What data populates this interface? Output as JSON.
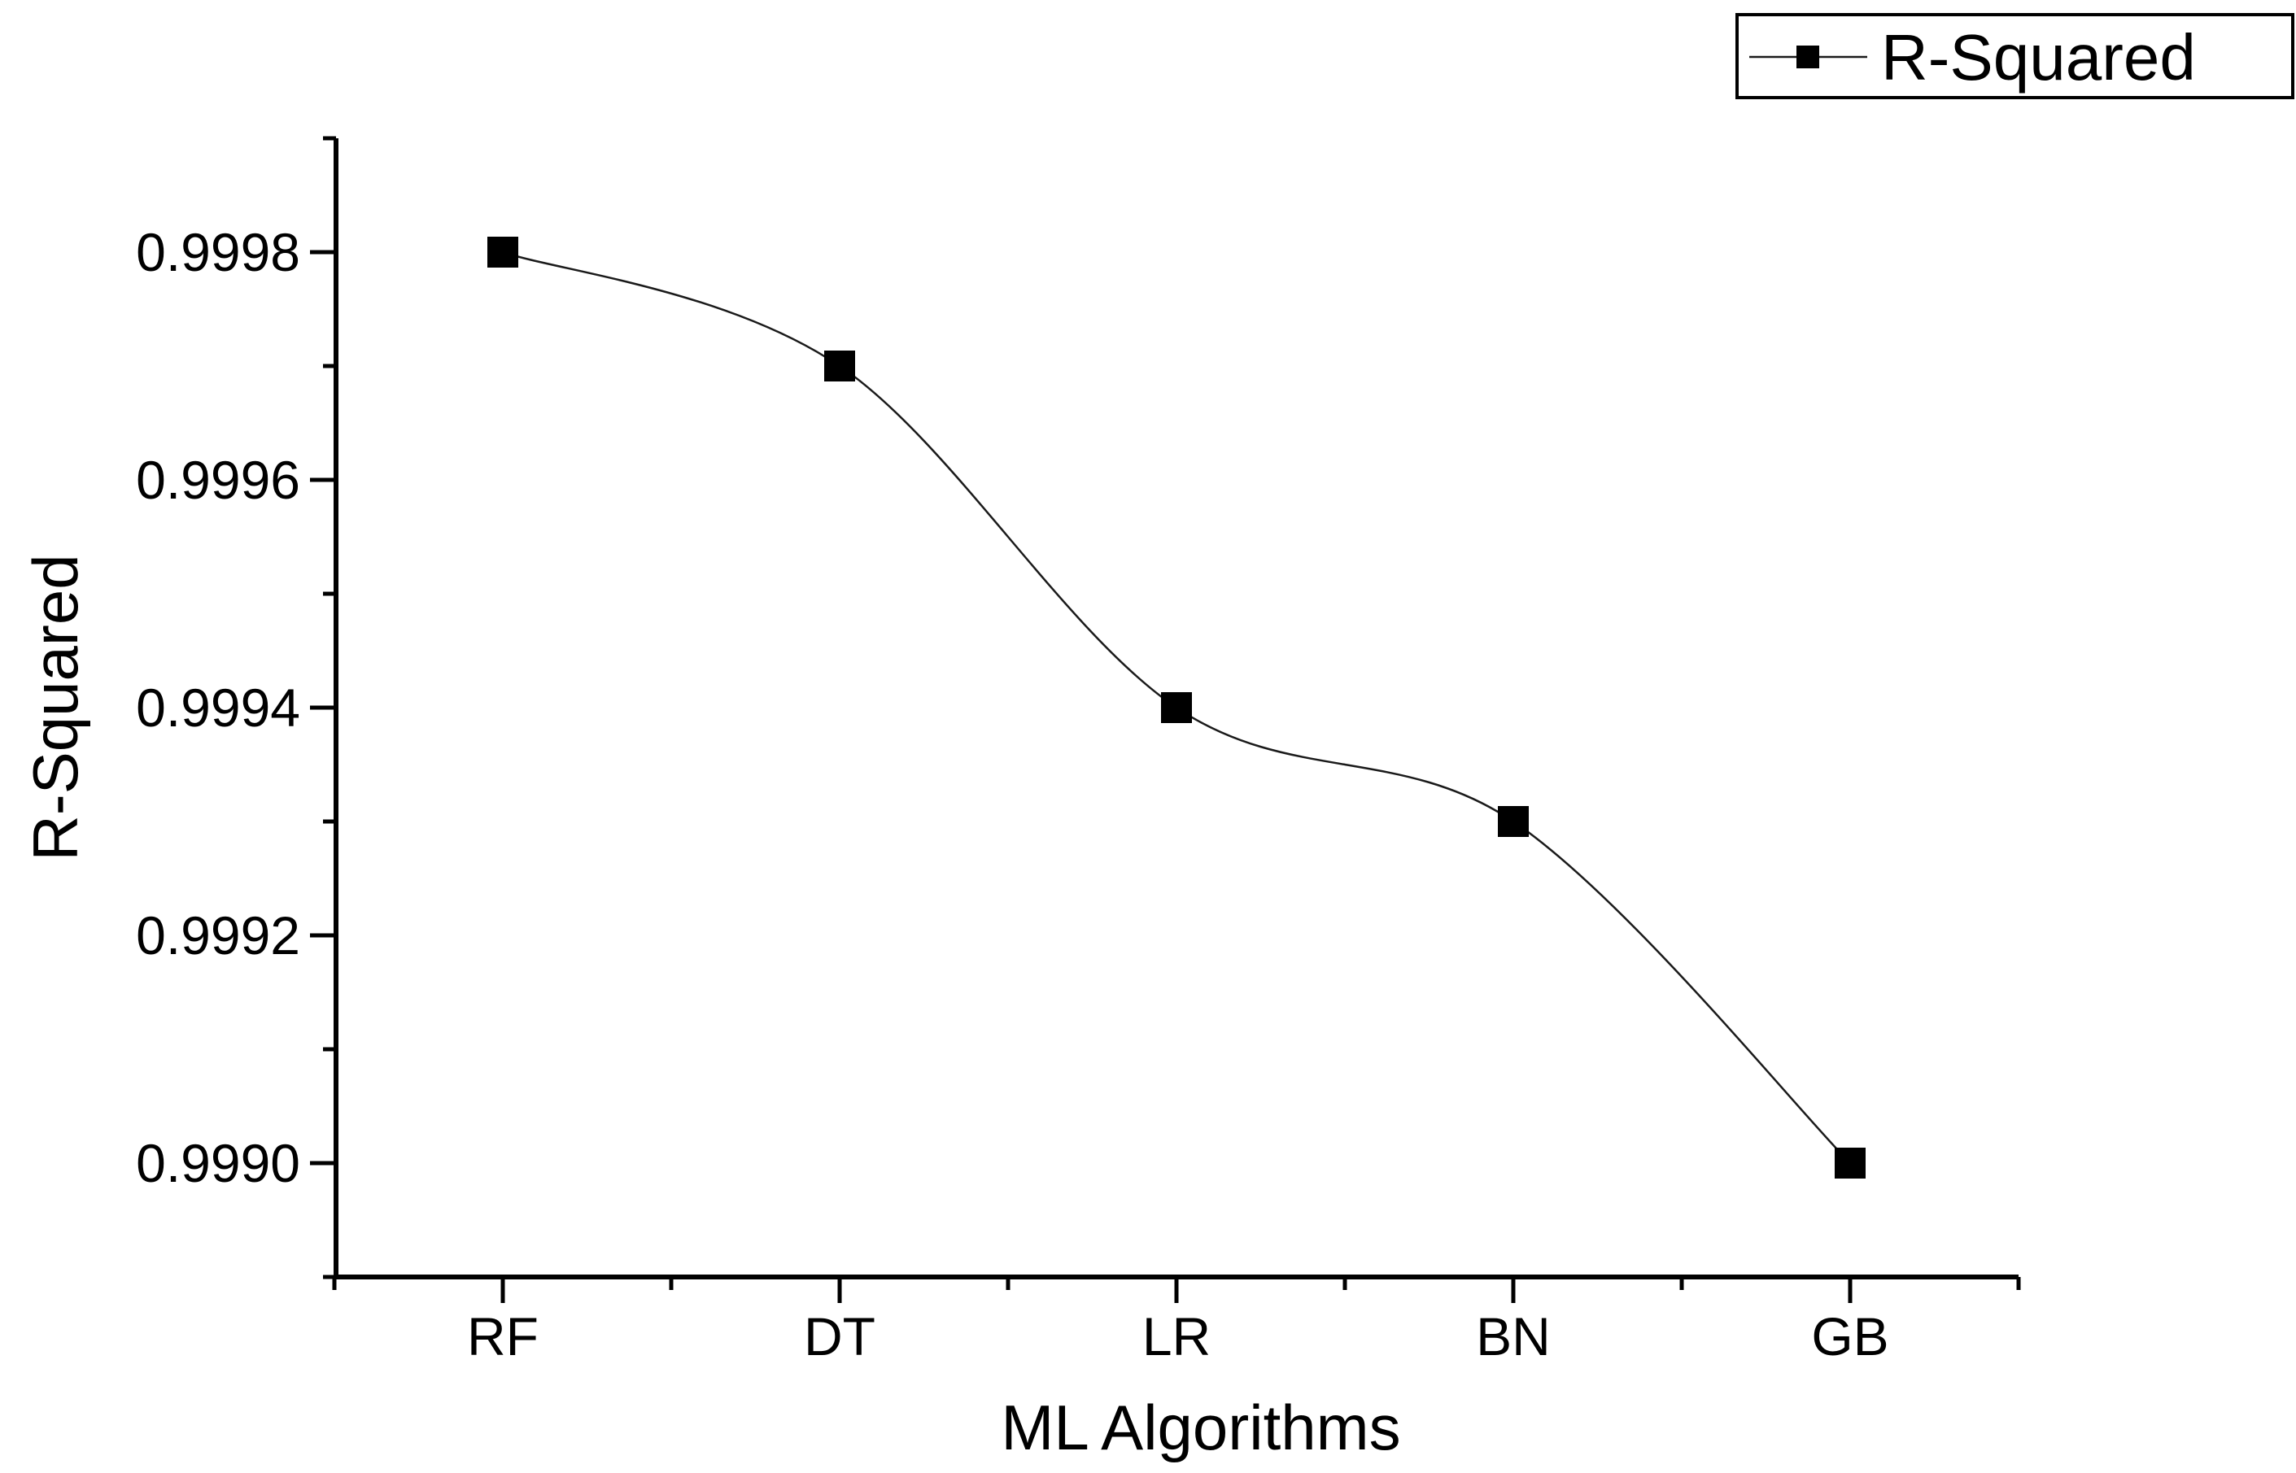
{
  "chart_data": {
    "type": "line",
    "title": "",
    "xlabel": "ML Algorithms",
    "ylabel": "R-Squared",
    "categories": [
      "RF",
      "DT",
      "LR",
      "BN",
      "GB"
    ],
    "series": [
      {
        "name": "R-Squared",
        "values": [
          0.9998,
          0.9997,
          0.9994,
          0.9993,
          0.999
        ],
        "marker": "filled-square",
        "line_style": "spline",
        "color": "#1a1a1a"
      }
    ],
    "ylim": [
      0.9989,
      0.9999
    ],
    "y_major_ticks": [
      0.999,
      0.9992,
      0.9994,
      0.9996,
      0.9998
    ],
    "y_tick_labels": [
      "0.9990",
      "0.9992",
      "0.9994",
      "0.9996",
      "0.9998"
    ],
    "y_minor_ticks": [
      0.9989,
      0.9991,
      0.9993,
      0.9995,
      0.9997,
      0.9999
    ],
    "x_minor_ticks_between_categories": true,
    "grid": false,
    "legend": {
      "position": "top-right",
      "border": true,
      "entries": [
        {
          "label": "R-Squared",
          "marker": "filled-square"
        }
      ]
    },
    "colors": {
      "axis": "#000000",
      "line": "#1a1a1a",
      "marker": "#000000",
      "text": "#000000",
      "background": "#ffffff"
    }
  }
}
